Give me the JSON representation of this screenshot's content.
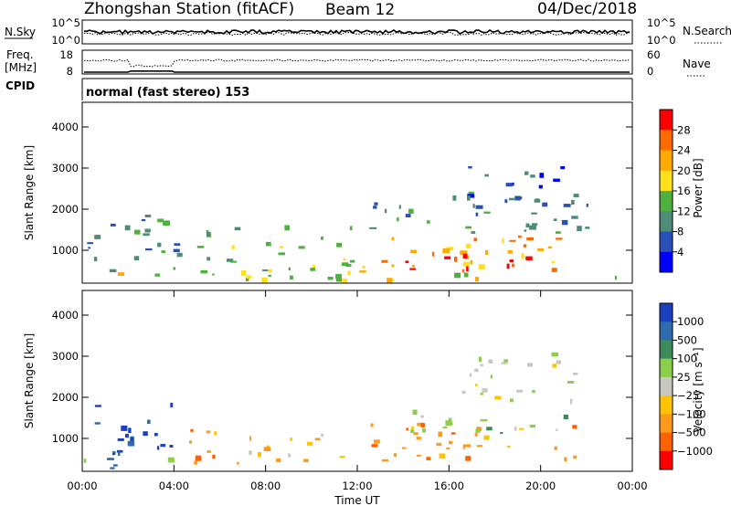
{
  "header": {
    "station": "Zhongshan Station (fitACF)",
    "beam": "Beam 12",
    "date": "04/Dec/2018"
  },
  "top_panels": {
    "nsky_label": "N.Sky",
    "nsearch_label": "N.Search",
    "power_ticks": [
      "10^5",
      "10^0"
    ],
    "freq_label_1": "Freq.",
    "freq_label_2": "[MHz]",
    "freq_ticks": [
      "18",
      "8"
    ],
    "nave_ticks": [
      "60",
      "0"
    ],
    "nave_label": "Nave",
    "cpid_label": "CPID",
    "mode_text": "normal (fast stereo) 153"
  },
  "chart_data": [
    {
      "type": "heatmap",
      "panel": "power",
      "ylabel": "Slant Range [km]",
      "yticks": [
        "1000",
        "2000",
        "3000",
        "4000"
      ],
      "ylim": [
        200,
        4600
      ],
      "xlim": [
        0,
        24
      ],
      "colorbar_label": "Power [dB]",
      "colorbar_ticks": [
        "4",
        "8",
        "12",
        "16",
        "20",
        "24",
        "28"
      ],
      "colors": [
        "#0000ff",
        "#2a50b8",
        "#4e8c7a",
        "#4fb040",
        "#ffe01a",
        "#ffaa00",
        "#ff6a00",
        "#ff0000"
      ],
      "regions": [
        {
          "t": [
            0.0,
            24.0
          ],
          "r": [
            200,
            380
          ],
          "level": 4
        },
        {
          "t": [
            0.2,
            4.2
          ],
          "r": [
            380,
            1800
          ],
          "level": 2
        },
        {
          "t": [
            5.0,
            11.8
          ],
          "r": [
            350,
            1500
          ],
          "level": 3
        },
        {
          "t": [
            12.0,
            21.5
          ],
          "r": [
            400,
            1300
          ],
          "level": 5
        },
        {
          "t": [
            14.0,
            20.0
          ],
          "r": [
            450,
            800
          ],
          "level": 7
        },
        {
          "t": [
            12.5,
            22.0
          ],
          "r": [
            1400,
            2300
          ],
          "level": 2
        },
        {
          "t": [
            16.5,
            21.5
          ],
          "r": [
            2000,
            3000
          ],
          "level": 1
        }
      ]
    },
    {
      "type": "heatmap",
      "panel": "velocity",
      "ylabel": "Slant Range [km]",
      "yticks": [
        "1000",
        "2000",
        "3000",
        "4000"
      ],
      "ylim": [
        200,
        4600
      ],
      "xlabel": "Time UT",
      "xticks": [
        "00:00",
        "04:00",
        "08:00",
        "12:00",
        "16:00",
        "20:00",
        "00:00"
      ],
      "xlim": [
        0,
        24
      ],
      "colorbar_label": "Velocity [m s⁻¹]",
      "colorbar_ticks": [
        "1000",
        "500",
        "100",
        "25",
        "−25",
        "−100",
        "−500",
        "−1000"
      ],
      "colors": [
        "#1a3fbf",
        "#2f6cae",
        "#3d8a5a",
        "#8cd04a",
        "#c8c8c0",
        "#ffc400",
        "#ff9a1a",
        "#ff6000",
        "#ff0000"
      ],
      "regions": [
        {
          "t": [
            0.0,
            4.5
          ],
          "r": [
            200,
            500
          ],
          "level": 2
        },
        {
          "t": [
            0.5,
            4.2
          ],
          "r": [
            400,
            1800
          ],
          "level": 0
        },
        {
          "t": [
            4.5,
            7.0
          ],
          "r": [
            250,
            1200
          ],
          "level": 6
        },
        {
          "t": [
            7.0,
            11.5
          ],
          "r": [
            400,
            1200
          ],
          "level": 5
        },
        {
          "t": [
            12.0,
            21.5
          ],
          "r": [
            400,
            1300
          ],
          "level": 6
        },
        {
          "t": [
            14.0,
            21.0
          ],
          "r": [
            1000,
            1600
          ],
          "level": 3
        },
        {
          "t": [
            16.5,
            21.5
          ],
          "r": [
            1800,
            3000
          ],
          "level": 4
        }
      ]
    }
  ]
}
